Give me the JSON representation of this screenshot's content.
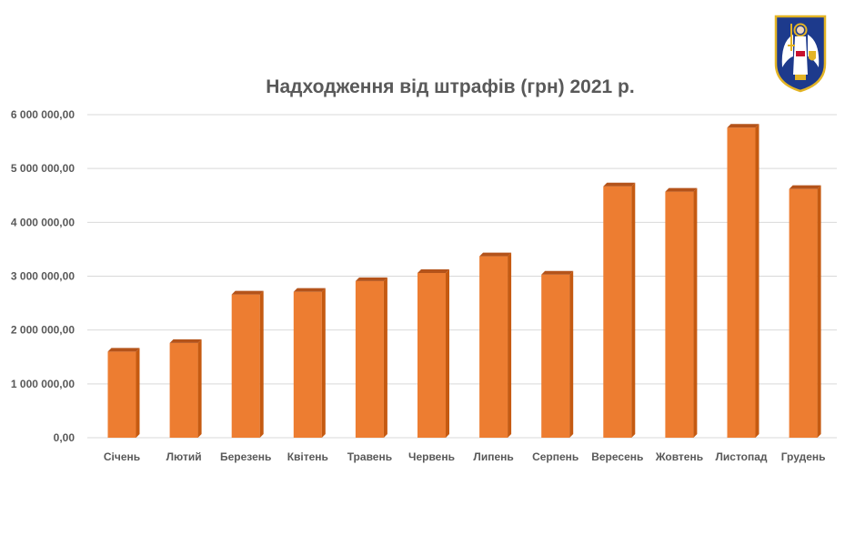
{
  "logo": {
    "icon": "kyiv-coat-of-arms-icon",
    "colors": {
      "shield": "#1d3a8c",
      "gold": "#e3b425",
      "figure": "#ffffff"
    }
  },
  "colors": {
    "bar": "#ed7d31",
    "bar_side": "#c55a11",
    "bar_top": "#b4531a",
    "grid": "#d9d9d9",
    "text": "#595959"
  },
  "chart_data": {
    "type": "bar",
    "title": "Надходження від штрафів (грн) 2021 р.",
    "xlabel": "",
    "ylabel": "",
    "categories": [
      "Січень",
      "Лютий",
      "Березень",
      "Квітень",
      "Травень",
      "Червень",
      "Липень",
      "Серпень",
      "Вересень",
      "Жовтень",
      "Листопад",
      "Грудень"
    ],
    "values": [
      1600000,
      1760000,
      2660000,
      2710000,
      2910000,
      3060000,
      3370000,
      3030000,
      4670000,
      4570000,
      5760000,
      4620000
    ],
    "ylim": [
      0,
      6000000
    ],
    "yticks": [
      0,
      1000000,
      2000000,
      3000000,
      4000000,
      5000000,
      6000000
    ],
    "ytick_labels": [
      "0,00",
      "1 000 000,00",
      "2 000 000,00",
      "3 000 000,00",
      "4 000 000,00",
      "5 000 000,00",
      "6 000 000,00"
    ],
    "grid": true,
    "legend": "none"
  }
}
